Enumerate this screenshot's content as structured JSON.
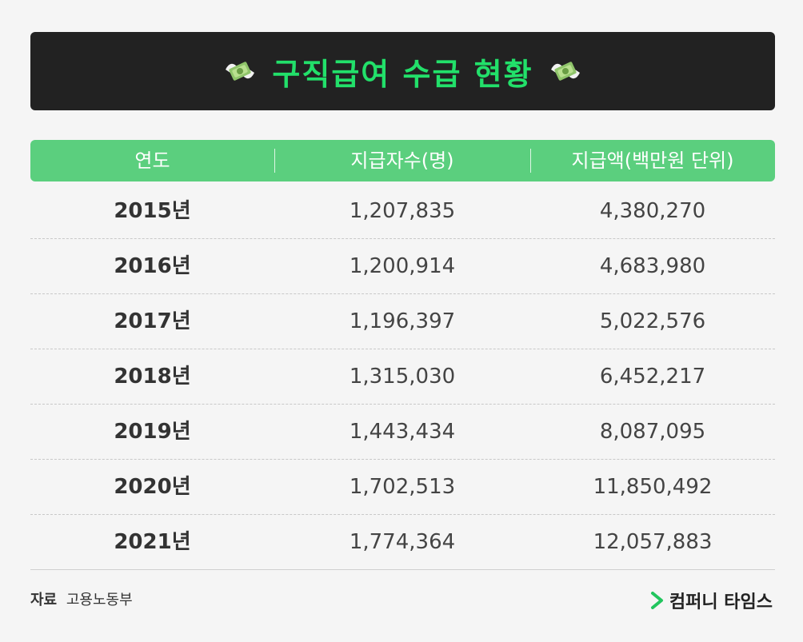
{
  "title": "구직급여 수급 현황",
  "icons": {
    "left": "flying-money-icon",
    "right": "flying-money-icon"
  },
  "colors": {
    "accent": "#22e06a",
    "header_bg": "#5bcf7e",
    "title_bg": "#222222"
  },
  "table": {
    "headers": [
      "연도",
      "지급자수(명)",
      "지급액(백만원 단위)"
    ],
    "rows": [
      {
        "year": "2015년",
        "people": "1,207,835",
        "amount": "4,380,270"
      },
      {
        "year": "2016년",
        "people": "1,200,914",
        "amount": "4,683,980"
      },
      {
        "year": "2017년",
        "people": "1,196,397",
        "amount": "5,022,576"
      },
      {
        "year": "2018년",
        "people": "1,315,030",
        "amount": "6,452,217"
      },
      {
        "year": "2019년",
        "people": "1,443,434",
        "amount": "8,087,095"
      },
      {
        "year": "2020년",
        "people": "1,702,513",
        "amount": "11,850,492"
      },
      {
        "year": "2021년",
        "people": "1,774,364",
        "amount": "12,057,883"
      }
    ]
  },
  "source": {
    "label": "자료",
    "value": "고용노동부"
  },
  "brand": {
    "name": "컴퍼니 타임스",
    "icon": "chevron-right-icon"
  }
}
